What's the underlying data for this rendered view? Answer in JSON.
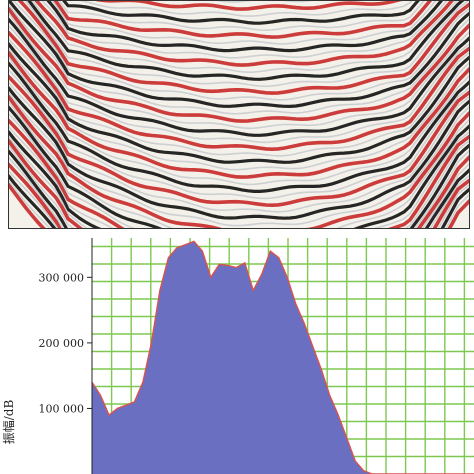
{
  "seismic_panel": {
    "image_kind": "seismic-section",
    "colors": {
      "positive": "#c62828",
      "negative": "#101010",
      "neutral": "#f4f1ea"
    }
  },
  "chart_data": {
    "type": "area",
    "xlabel": "",
    "ylabel": "振幅/dB",
    "ylim": [
      0,
      360000
    ],
    "y_ticks": [
      {
        "value": 100000,
        "label": "100 000"
      },
      {
        "value": 200000,
        "label": "200 000"
      },
      {
        "value": 300000,
        "label": "300 000"
      }
    ],
    "grid": true,
    "fill_color": "#6b6fc2",
    "line_color": "#d9534f",
    "grid_color": "#7ec850",
    "x": [
      0,
      1,
      2,
      3,
      4,
      5,
      6,
      7,
      8,
      9,
      10,
      11,
      12,
      13,
      14,
      15,
      16,
      17,
      18,
      19,
      20,
      21,
      22,
      23,
      24,
      25,
      26,
      27,
      28,
      29,
      30,
      31,
      32,
      33,
      34,
      35,
      36,
      37,
      38,
      39,
      40,
      41,
      42,
      43,
      44,
      45
    ],
    "values": [
      140000,
      120000,
      90000,
      100000,
      105000,
      110000,
      140000,
      200000,
      280000,
      330000,
      345000,
      350000,
      355000,
      340000,
      300000,
      320000,
      318000,
      315000,
      322000,
      280000,
      305000,
      340000,
      330000,
      300000,
      260000,
      230000,
      195000,
      160000,
      120000,
      90000,
      55000,
      20000,
      5000,
      0,
      0,
      0,
      0,
      0,
      0,
      0,
      0,
      0,
      0,
      0,
      0,
      0
    ]
  }
}
